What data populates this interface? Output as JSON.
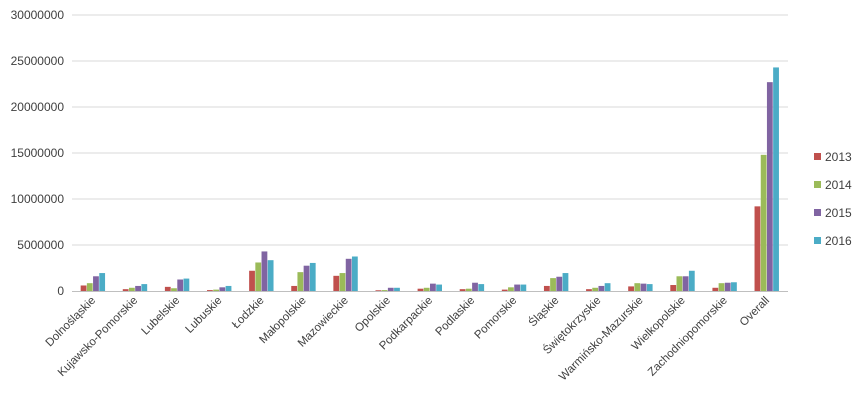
{
  "chart_data": {
    "type": "bar",
    "title": "",
    "xlabel": "",
    "ylabel": "",
    "ylim": [
      0,
      30000000
    ],
    "yticks": [
      0,
      5000000,
      10000000,
      15000000,
      20000000,
      25000000,
      30000000
    ],
    "ytick_labels": [
      "0",
      "5000000",
      "10000000",
      "15000000",
      "20000000",
      "25000000",
      "30000000"
    ],
    "grid": "horizontal",
    "legend": "right",
    "categories": [
      "Dolnośląskie",
      "Kujawsko-Pomorskie",
      "Lubelskie",
      "Lubuskie",
      "Łodzkie",
      "Małopolskie",
      "Mazowieckie",
      "Opolskie",
      "Podkarpackie",
      "Podlaskie",
      "Pomorskie",
      "Śląskie",
      "Świętokrzyskie",
      "Warmińsko-Mazurskie",
      "Wielkopolskie",
      "Zachodniopomorskie",
      "Overall"
    ],
    "series": [
      {
        "name": "2013",
        "color": "#c0504d",
        "values": [
          600000,
          200000,
          450000,
          100000,
          2200000,
          550000,
          1650000,
          80000,
          250000,
          200000,
          150000,
          550000,
          200000,
          500000,
          650000,
          350000,
          9200000
        ]
      },
      {
        "name": "2014",
        "color": "#9bbb59",
        "values": [
          850000,
          350000,
          300000,
          150000,
          3100000,
          2050000,
          1950000,
          100000,
          350000,
          250000,
          400000,
          1400000,
          350000,
          850000,
          1600000,
          850000,
          14800000
        ]
      },
      {
        "name": "2015",
        "color": "#8064a2",
        "values": [
          1600000,
          550000,
          1250000,
          400000,
          4300000,
          2750000,
          3500000,
          350000,
          800000,
          900000,
          700000,
          1550000,
          550000,
          800000,
          1600000,
          900000,
          22700000
        ]
      },
      {
        "name": "2016",
        "color": "#4bacc6",
        "values": [
          1950000,
          750000,
          1350000,
          550000,
          3350000,
          3050000,
          3750000,
          350000,
          700000,
          750000,
          700000,
          1950000,
          850000,
          750000,
          2200000,
          950000,
          24300000
        ]
      }
    ]
  }
}
